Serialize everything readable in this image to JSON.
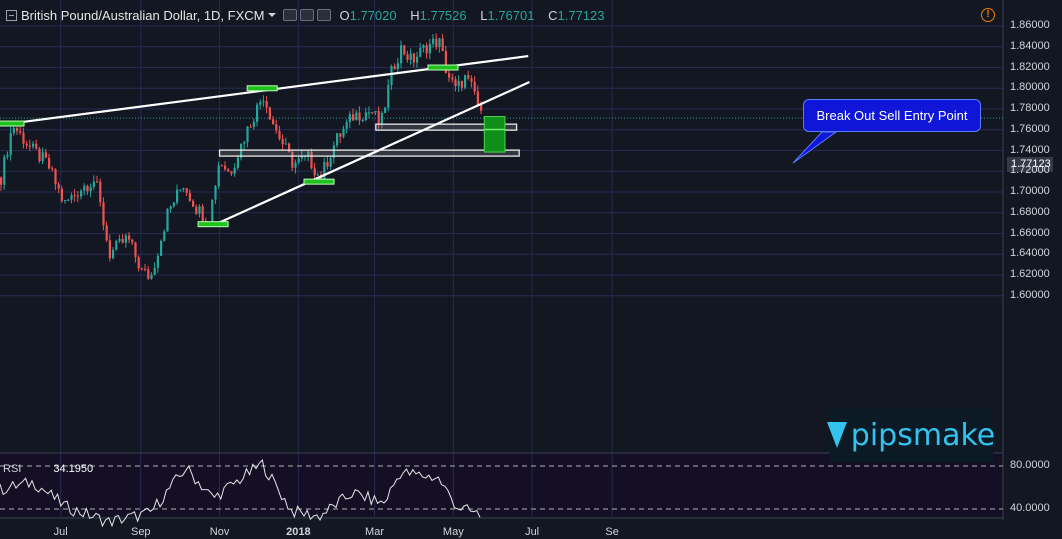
{
  "header": {
    "symbol": "British Pound/Australian Dollar, 1D, FXCM",
    "open_label": "O",
    "open": "1.77020",
    "high_label": "H",
    "high": "1.77526",
    "low_label": "L",
    "low": "1.76701",
    "close_label": "C",
    "close": "1.77123"
  },
  "callout": {
    "text": "Break Out Sell Entry Point"
  },
  "logo": {
    "text": "pipsmake"
  },
  "rsi": {
    "label": "RSI",
    "value": "34.1950"
  },
  "colors": {
    "background": "#131722",
    "up": "#26a69a",
    "down": "#ef5350",
    "grid": "#2a2e5a",
    "accent": "#1515e0",
    "highlight": "#22c01e"
  },
  "chart_data": {
    "type": "candlestick",
    "title": "British Pound/Australian Dollar, 1D, FXCM",
    "x_labels": [
      "Jul",
      "Sep",
      "Nov",
      "2018",
      "Mar",
      "May",
      "Jul",
      "Se"
    ],
    "y_ticks": [
      "1.86000",
      "1.84000",
      "1.82000",
      "1.80000",
      "1.78000",
      "1.76000",
      "1.74000",
      "1.72000",
      "1.70000",
      "1.68000",
      "1.66000",
      "1.64000",
      "1.62000",
      "1.60000"
    ],
    "ylim": [
      1.595,
      1.865
    ],
    "current_price": "1.77123",
    "price_path": [
      {
        "date": "2017-05-15",
        "price": 1.714
      },
      {
        "date": "2017-05-24",
        "price": 1.765
      },
      {
        "date": "2017-06-07",
        "price": 1.742
      },
      {
        "date": "2017-06-20",
        "price": 1.727
      },
      {
        "date": "2017-07-03",
        "price": 1.688
      },
      {
        "date": "2017-07-17",
        "price": 1.705
      },
      {
        "date": "2017-07-27",
        "price": 1.712
      },
      {
        "date": "2017-08-07",
        "price": 1.64
      },
      {
        "date": "2017-08-21",
        "price": 1.656
      },
      {
        "date": "2017-09-01",
        "price": 1.623
      },
      {
        "date": "2017-09-08",
        "price": 1.618
      },
      {
        "date": "2017-09-21",
        "price": 1.68
      },
      {
        "date": "2017-10-03",
        "price": 1.708
      },
      {
        "date": "2017-10-13",
        "price": 1.685
      },
      {
        "date": "2017-10-23",
        "price": 1.673
      },
      {
        "date": "2017-10-31",
        "price": 1.731
      },
      {
        "date": "2017-11-08",
        "price": 1.718
      },
      {
        "date": "2017-11-22",
        "price": 1.761
      },
      {
        "date": "2017-12-04",
        "price": 1.794
      },
      {
        "date": "2017-12-13",
        "price": 1.762
      },
      {
        "date": "2017-12-27",
        "price": 1.727
      },
      {
        "date": "2018-01-08",
        "price": 1.733
      },
      {
        "date": "2018-01-17",
        "price": 1.713
      },
      {
        "date": "2018-01-29",
        "price": 1.749
      },
      {
        "date": "2018-02-12",
        "price": 1.774
      },
      {
        "date": "2018-02-26",
        "price": 1.778
      },
      {
        "date": "2018-03-05",
        "price": 1.764
      },
      {
        "date": "2018-03-14",
        "price": 1.819
      },
      {
        "date": "2018-03-21",
        "price": 1.839
      },
      {
        "date": "2018-03-29",
        "price": 1.826
      },
      {
        "date": "2018-04-09",
        "price": 1.84
      },
      {
        "date": "2018-04-19",
        "price": 1.846
      },
      {
        "date": "2018-04-25",
        "price": 1.816
      },
      {
        "date": "2018-05-02",
        "price": 1.798
      },
      {
        "date": "2018-05-09",
        "price": 1.81
      },
      {
        "date": "2018-05-17",
        "price": 1.795
      },
      {
        "date": "2018-05-22",
        "price": 1.771
      }
    ],
    "rsi_levels": [
      80,
      40
    ],
    "rsi_path": [
      {
        "date": "2017-05-15",
        "rsi": 58
      },
      {
        "date": "2017-06-10",
        "rsi": 65
      },
      {
        "date": "2017-07-05",
        "rsi": 42
      },
      {
        "date": "2017-08-07",
        "rsi": 28
      },
      {
        "date": "2017-09-08",
        "rsi": 36
      },
      {
        "date": "2017-10-06",
        "rsi": 78
      },
      {
        "date": "2017-10-27",
        "rsi": 50
      },
      {
        "date": "2017-12-04",
        "rsi": 82
      },
      {
        "date": "2017-12-27",
        "rsi": 38
      },
      {
        "date": "2018-01-17",
        "rsi": 33
      },
      {
        "date": "2018-02-12",
        "rsi": 55
      },
      {
        "date": "2018-03-08",
        "rsi": 45
      },
      {
        "date": "2018-03-21",
        "rsi": 74
      },
      {
        "date": "2018-04-19",
        "rsi": 69
      },
      {
        "date": "2018-05-04",
        "rsi": 42
      },
      {
        "date": "2018-05-22",
        "rsi": 34.195
      }
    ],
    "trendlines": [
      {
        "name": "upper",
        "from": {
          "date": "2017-05-20",
          "price": 1.7655
        },
        "to": {
          "date": "2018-06-28",
          "price": 1.831
        }
      },
      {
        "name": "lower",
        "from": {
          "date": "2017-10-30",
          "price": 1.6695
        },
        "to": {
          "date": "2018-06-29",
          "price": 1.806
        }
      }
    ],
    "levels": [
      {
        "from": "2018-03-02",
        "to": "2018-06-19",
        "price": 1.7625
      },
      {
        "from": "2017-11-01",
        "to": "2018-06-21",
        "price": 1.7375
      }
    ],
    "pivot_markers": [
      {
        "date": "2017-05-22",
        "price": 1.7655
      },
      {
        "date": "2017-12-04",
        "price": 1.7995
      },
      {
        "date": "2017-10-27",
        "price": 1.6685
      },
      {
        "date": "2018-01-17",
        "price": 1.7095
      },
      {
        "date": "2018-04-23",
        "price": 1.8195
      }
    ],
    "entry_box": {
      "from": "2018-05-25",
      "to": "2018-06-10",
      "top": 1.7727,
      "bottom": 1.7385,
      "mid": 1.7602
    }
  }
}
